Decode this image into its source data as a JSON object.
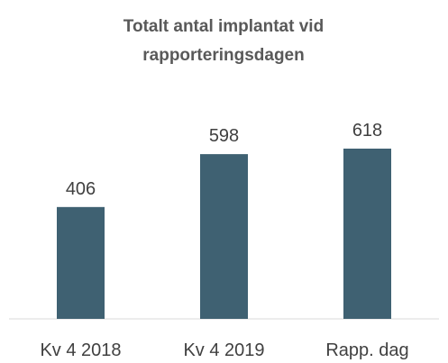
{
  "chart_data": {
    "type": "bar",
    "title": "Totalt antal implantat vid rapporteringsdagen",
    "categories": [
      "Kv 4 2018",
      "Kv 4 2019",
      "Rapp. dag"
    ],
    "values": [
      406,
      598,
      618
    ],
    "color": "#3f6172"
  }
}
